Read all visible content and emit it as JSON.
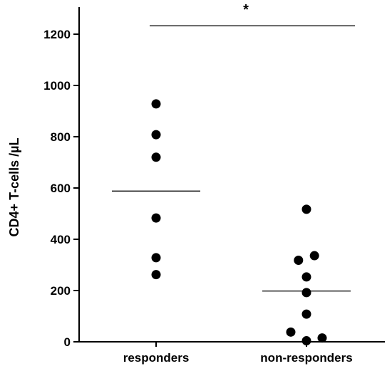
{
  "chart_data": {
    "type": "scatter",
    "ylabel": "CD4+ T-cells /µL",
    "xlabel": "",
    "ylim": [
      0,
      1250
    ],
    "yticks": [
      0,
      200,
      400,
      600,
      800,
      1000,
      1200
    ],
    "categories": [
      "responders",
      "non-responders"
    ],
    "series": [
      {
        "category": "responders",
        "points": [
          {
            "offset": 0,
            "value": 928
          },
          {
            "offset": 0,
            "value": 808
          },
          {
            "offset": 0,
            "value": 720
          },
          {
            "offset": 0,
            "value": 483
          },
          {
            "offset": 0,
            "value": 328
          },
          {
            "offset": 0,
            "value": 262
          }
        ],
        "mean": 588
      },
      {
        "category": "non-responders",
        "points": [
          {
            "offset": 0,
            "value": 517
          },
          {
            "offset": -0.28,
            "value": 318
          },
          {
            "offset": 0.28,
            "value": 336
          },
          {
            "offset": 0,
            "value": 253
          },
          {
            "offset": 0,
            "value": 192
          },
          {
            "offset": 0,
            "value": 108
          },
          {
            "offset": -0.55,
            "value": 38
          },
          {
            "offset": 0,
            "value": 4
          },
          {
            "offset": 0.55,
            "value": 15
          }
        ],
        "mean": 198
      }
    ],
    "significance": {
      "label": "*",
      "value": 1233
    }
  },
  "colors": {
    "marker": "#000000",
    "axis": "#000000"
  }
}
